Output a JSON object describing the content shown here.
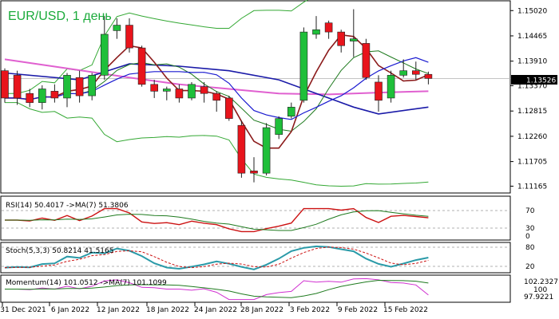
{
  "title": "EUR/USD, 1 день",
  "current_price_label": "1.13526",
  "colors": {
    "bull": "#1fbf3a",
    "bear": "#e8141c",
    "ma_slow": "#1a1aa8",
    "ma_mid": "#b01a8a",
    "ma_pink": "#e060d0",
    "ma_fast": "#8b1a1a",
    "ma_green": "#1e7a1e",
    "bb": "#33a833",
    "grid": "#c8c8c8"
  },
  "indicators": [
    {
      "label": "RSI(14) 50.4017  ->MA(7) 51.3806",
      "levels": [
        "70",
        "30",
        "0"
      ]
    },
    {
      "label": "Stoch(5,3,3) 50.8214 41.5165",
      "levels": [
        "80",
        "20"
      ]
    },
    {
      "label": "Momentum(14) 101.0512  ->MA(7) 101.1099",
      "levels": [
        "102.2327",
        "100",
        "97.9221"
      ]
    }
  ],
  "chart_data": {
    "type": "candlestick",
    "title": "EUR/USD, 1 день",
    "x_ticks": [
      "31 Dec 2021",
      "6 Jan 2022",
      "12 Jan 2022",
      "18 Jan 2022",
      "24 Jan 2022",
      "28 Jan 2022",
      "3 Feb 2022",
      "9 Feb 2022",
      "15 Feb 2022"
    ],
    "y_ticks": [
      "1.15020",
      "1.14465",
      "1.13910",
      "1.13370",
      "1.12815",
      "1.12260",
      "1.11705",
      "1.11165"
    ],
    "ylim": [
      1.1105,
      1.152
    ],
    "candles": [
      {
        "o": 1.137,
        "h": 1.1375,
        "l": 1.13,
        "c": 1.131
      },
      {
        "o": 1.136,
        "h": 1.137,
        "l": 1.1295,
        "c": 1.131
      },
      {
        "o": 1.132,
        "h": 1.133,
        "l": 1.129,
        "c": 1.13
      },
      {
        "o": 1.13,
        "h": 1.1338,
        "l": 1.1285,
        "c": 1.133
      },
      {
        "o": 1.1325,
        "h": 1.134,
        "l": 1.13,
        "c": 1.131
      },
      {
        "o": 1.131,
        "h": 1.1365,
        "l": 1.129,
        "c": 1.136
      },
      {
        "o": 1.1355,
        "h": 1.137,
        "l": 1.13,
        "c": 1.1315
      },
      {
        "o": 1.1315,
        "h": 1.1365,
        "l": 1.1305,
        "c": 1.136
      },
      {
        "o": 1.136,
        "h": 1.149,
        "l": 1.135,
        "c": 1.145
      },
      {
        "o": 1.1458,
        "h": 1.1485,
        "l": 1.144,
        "c": 1.147
      },
      {
        "o": 1.147,
        "h": 1.1485,
        "l": 1.141,
        "c": 1.142
      },
      {
        "o": 1.142,
        "h": 1.1425,
        "l": 1.1335,
        "c": 1.134
      },
      {
        "o": 1.134,
        "h": 1.135,
        "l": 1.131,
        "c": 1.1325
      },
      {
        "o": 1.1325,
        "h": 1.1335,
        "l": 1.1305,
        "c": 1.133
      },
      {
        "o": 1.133,
        "h": 1.134,
        "l": 1.13,
        "c": 1.131
      },
      {
        "o": 1.131,
        "h": 1.1345,
        "l": 1.1305,
        "c": 1.134
      },
      {
        "o": 1.1335,
        "h": 1.1345,
        "l": 1.13,
        "c": 1.132
      },
      {
        "o": 1.132,
        "h": 1.1325,
        "l": 1.128,
        "c": 1.1305
      },
      {
        "o": 1.131,
        "h": 1.1315,
        "l": 1.126,
        "c": 1.1265
      },
      {
        "o": 1.125,
        "h": 1.126,
        "l": 1.1135,
        "c": 1.1145
      },
      {
        "o": 1.115,
        "h": 1.118,
        "l": 1.1125,
        "c": 1.1145
      },
      {
        "o": 1.1145,
        "h": 1.1255,
        "l": 1.114,
        "c": 1.1245
      },
      {
        "o": 1.123,
        "h": 1.127,
        "l": 1.122,
        "c": 1.1265
      },
      {
        "o": 1.127,
        "h": 1.13,
        "l": 1.1265,
        "c": 1.129
      },
      {
        "o": 1.1305,
        "h": 1.1465,
        "l": 1.13,
        "c": 1.1455
      },
      {
        "o": 1.145,
        "h": 1.149,
        "l": 1.144,
        "c": 1.146
      },
      {
        "o": 1.1475,
        "h": 1.148,
        "l": 1.144,
        "c": 1.1455
      },
      {
        "o": 1.1455,
        "h": 1.146,
        "l": 1.141,
        "c": 1.1425
      },
      {
        "o": 1.1435,
        "h": 1.1505,
        "l": 1.14,
        "c": 1.144
      },
      {
        "o": 1.143,
        "h": 1.144,
        "l": 1.135,
        "c": 1.1355
      },
      {
        "o": 1.1345,
        "h": 1.136,
        "l": 1.128,
        "c": 1.1305
      },
      {
        "o": 1.131,
        "h": 1.137,
        "l": 1.13,
        "c": 1.136
      },
      {
        "o": 1.136,
        "h": 1.1395,
        "l": 1.1355,
        "c": 1.137
      },
      {
        "o": 1.137,
        "h": 1.139,
        "l": 1.135,
        "c": 1.1362
      },
      {
        "o": 1.1362,
        "h": 1.1368,
        "l": 1.134,
        "c": 1.1353
      }
    ],
    "ma_slow": [
      [
        0,
        1.1365
      ],
      [
        6,
        1.135
      ],
      [
        10,
        1.1385
      ],
      [
        14,
        1.138
      ],
      [
        18,
        1.137
      ],
      [
        22,
        1.135
      ],
      [
        25,
        1.132
      ],
      [
        28,
        1.129
      ],
      [
        30,
        1.1275
      ],
      [
        34,
        1.129
      ]
    ],
    "ma_pink": [
      [
        0,
        1.1395
      ],
      [
        5,
        1.1375
      ],
      [
        10,
        1.1355
      ],
      [
        14,
        1.134
      ],
      [
        18,
        1.133
      ],
      [
        22,
        1.132
      ],
      [
        26,
        1.1318
      ],
      [
        30,
        1.1322
      ],
      [
        34,
        1.1325
      ]
    ]
  }
}
